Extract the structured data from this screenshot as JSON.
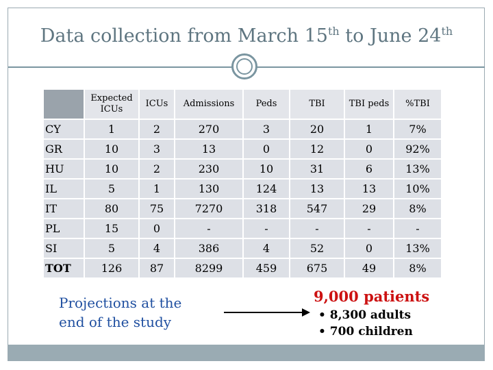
{
  "title": {
    "main": "Data collection from March 15",
    "sup1": "th",
    "mid": " to June 24",
    "sup2": "th"
  },
  "table": {
    "headers": [
      "Expected ICUs",
      "ICUs",
      "Admissions",
      "Peds",
      "TBI",
      "TBI peds",
      "%TBI"
    ],
    "rows": [
      {
        "label": "CY",
        "cells": [
          "1",
          "2",
          "270",
          "3",
          "20",
          "1",
          "7%"
        ]
      },
      {
        "label": "GR",
        "cells": [
          "10",
          "3",
          "13",
          "0",
          "12",
          "0",
          "92%"
        ]
      },
      {
        "label": "HU",
        "cells": [
          "10",
          "2",
          "230",
          "10",
          "31",
          "6",
          "13%"
        ]
      },
      {
        "label": "IL",
        "cells": [
          "5",
          "1",
          "130",
          "124",
          "13",
          "13",
          "10%"
        ]
      },
      {
        "label": "IT",
        "cells": [
          "80",
          "75",
          "7270",
          "318",
          "547",
          "29",
          "8%"
        ]
      },
      {
        "label": "PL",
        "cells": [
          "15",
          "0",
          "-",
          "-",
          "-",
          "-",
          "-"
        ]
      },
      {
        "label": "SI",
        "cells": [
          "5",
          "4",
          "386",
          "4",
          "52",
          "0",
          "13%"
        ]
      },
      {
        "label": "TOT",
        "cells": [
          "126",
          "87",
          "8299",
          "459",
          "675",
          "49",
          "8%"
        ]
      }
    ]
  },
  "projections": {
    "line1": "Projections at the",
    "line2": "end of the study"
  },
  "result": {
    "patients": "9,000 patients",
    "bullet1": "• 8,300 adults",
    "bullet2": "• 700 children"
  },
  "colors": {
    "accent": "#7a95a0",
    "projection": "#1f4fa0",
    "patients": "#cc1111"
  }
}
